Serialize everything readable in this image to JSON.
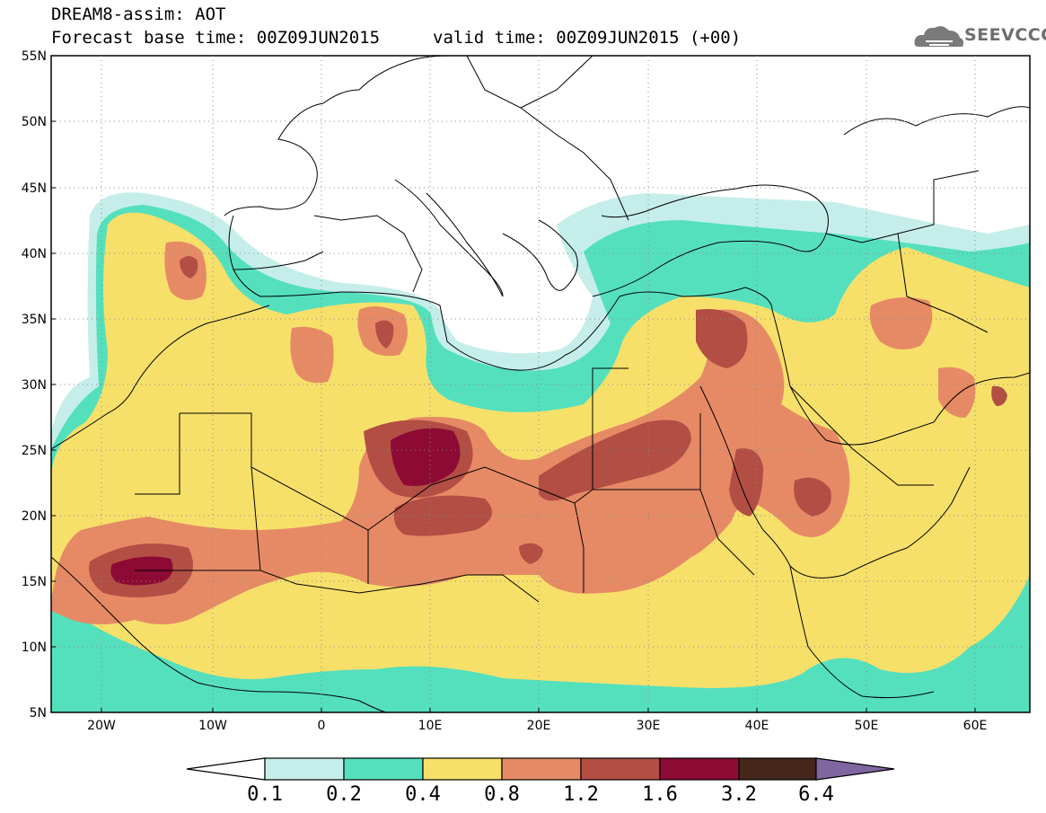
{
  "header": {
    "title": "DREAM8-assim: AOT",
    "base_time": "Forecast base time: 00Z09JUN2015",
    "valid_time": "valid time: 00Z09JUN2015 (+00)",
    "logo_text": "SEEVCCC",
    "logo_icon": "cloud-icon"
  },
  "map": {
    "lat_ticks": [
      "55N",
      "50N",
      "45N",
      "40N",
      "35N",
      "30N",
      "25N",
      "20N",
      "15N",
      "10N",
      "5N"
    ],
    "lon_ticks": [
      "20W",
      "10W",
      "0",
      "10E",
      "20E",
      "30E",
      "40E",
      "50E",
      "60E"
    ],
    "grid": true
  },
  "colorbar": {
    "levels": [
      "0.1",
      "0.2",
      "0.4",
      "0.8",
      "1.2",
      "1.6",
      "3.2",
      "6.4"
    ],
    "colors": [
      "#ffffff",
      "#c5eeea",
      "#55e0bd",
      "#f7e06a",
      "#e68a66",
      "#b24e44",
      "#8c0a34",
      "#44261a",
      "#8066a0"
    ]
  }
}
